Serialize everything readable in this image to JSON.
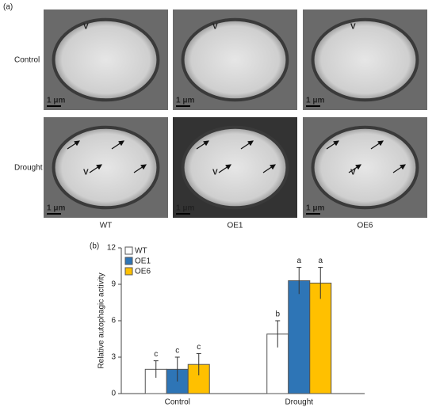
{
  "figure": {
    "panel_a": "(a)",
    "row_labels": [
      "Control",
      "Drought"
    ],
    "col_labels": [
      "WT",
      "OE1",
      "OE6"
    ],
    "images": [
      [
        {
          "v": "V",
          "scale": "1 μm"
        },
        {
          "v": "V",
          "scale": "1 μm"
        },
        {
          "v": "V",
          "scale": "1 μm"
        }
      ],
      [
        {
          "v": "V",
          "scale": "1 μm"
        },
        {
          "v": "V",
          "scale": "1 μm"
        },
        {
          "v": "V",
          "scale": "1 μm"
        }
      ]
    ]
  },
  "chart_data": {
    "type": "bar",
    "panel": "(b)",
    "y_label": "Relative autophagic activity",
    "categories": [
      "Control",
      "Drought"
    ],
    "series": [
      {
        "name": "WT",
        "color": "#ffffff",
        "values": [
          2.0,
          4.9
        ],
        "errors": [
          0.7,
          1.1
        ],
        "letters": [
          "c",
          "b"
        ]
      },
      {
        "name": "OE1",
        "color": "#2e75b6",
        "values": [
          2.0,
          9.3
        ],
        "errors": [
          1.0,
          1.1
        ],
        "letters": [
          "c",
          "a"
        ]
      },
      {
        "name": "OE6",
        "color": "#ffc000",
        "values": [
          2.4,
          9.1
        ],
        "errors": [
          0.9,
          1.3
        ],
        "letters": [
          "c",
          "a"
        ]
      }
    ],
    "ylim": [
      0,
      12
    ],
    "yticks": [
      0,
      3,
      6,
      9,
      12
    ],
    "legend": "upper-left"
  }
}
